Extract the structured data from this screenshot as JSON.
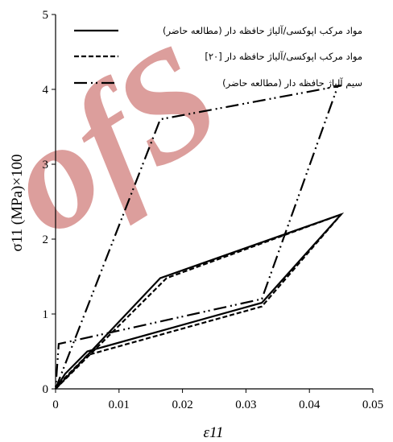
{
  "chart_data": {
    "type": "line",
    "xlabel": "ε11",
    "ylabel": "σ11 (MPa)×100",
    "xlim": [
      0,
      0.05
    ],
    "ylim": [
      0,
      5
    ],
    "x_ticks": [
      "0",
      "0.01",
      "0.02",
      "0.03",
      "0.04",
      "0.05"
    ],
    "y_ticks": [
      "0",
      "1",
      "2",
      "3",
      "4",
      "5"
    ],
    "grid": false,
    "legend_position": "top-right",
    "series": [
      {
        "name": "مواد مرکب اپوکسی/آلیاژ حافظه دار (مطالعه حاضر)",
        "style": "solid",
        "color": "#000000",
        "x": [
          0,
          0.0165,
          0.045,
          0.0325,
          0.005,
          0.0015,
          0
        ],
        "y": [
          0,
          1.48,
          2.33,
          1.15,
          0.5,
          0.2,
          0
        ]
      },
      {
        "name": "مواد مرکب اپوکسی/آلیاژ حافظه دار [۲۰]",
        "style": "dashed",
        "color": "#000000",
        "x": [
          0,
          0.0175,
          0.045,
          0.0325,
          0.005,
          0.0015,
          0
        ],
        "y": [
          0,
          1.48,
          2.33,
          1.1,
          0.45,
          0.15,
          0
        ]
      },
      {
        "name": "سیم آلیاژ حافظه دار (مطالعه حاضر)",
        "style": "dash-dot-dot",
        "color": "#000000",
        "x": [
          0,
          0.0165,
          0.045,
          0.0445,
          0.0325,
          0.0005,
          0
        ],
        "y": [
          0,
          3.6,
          4.05,
          4.05,
          1.2,
          0.6,
          0
        ]
      }
    ]
  }
}
